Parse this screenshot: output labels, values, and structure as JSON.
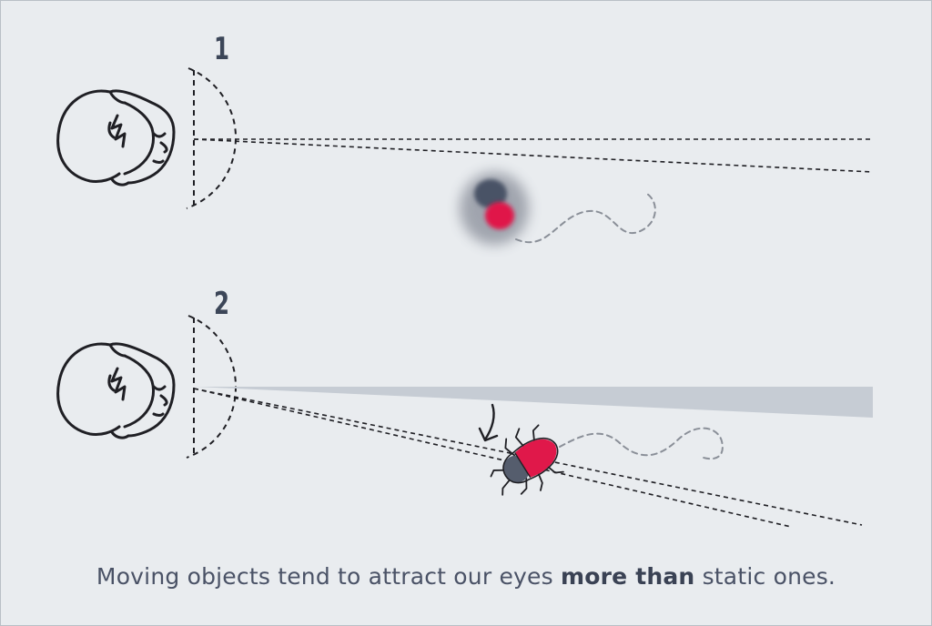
{
  "panels": [
    {
      "number": "1"
    },
    {
      "number": "2"
    }
  ],
  "caption": {
    "before": "Moving objects tend to attract our eyes ",
    "emphasis": "more than",
    "after": " static ones."
  },
  "colors": {
    "background": "#e9ecef",
    "ink": "#1f1f24",
    "bug_red": "#e0184a",
    "bug_dark": "#555d6d",
    "focus_beam": "#c6ccd4",
    "text": "#4a5266"
  },
  "icons": [
    "head-icon",
    "field-of-view-arc-icon",
    "blurred-bug-icon",
    "bug-icon",
    "arrow-icon"
  ]
}
